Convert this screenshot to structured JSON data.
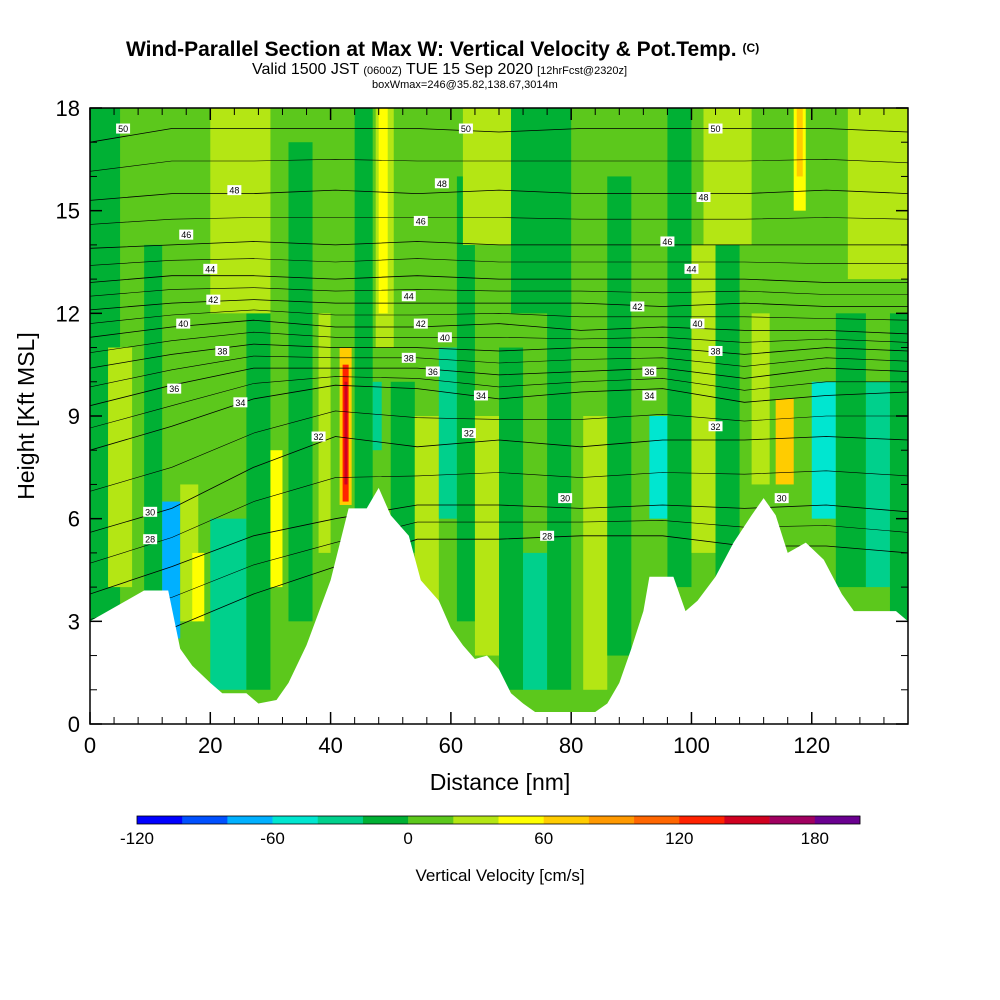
{
  "chart_data": {
    "type": "heatmap",
    "title": "Wind-Parallel Section at Max W: Vertical Velocity & Pot.Temp.",
    "title_mark": "(C)",
    "subtitle_parts": [
      "Valid 1500 JST",
      "(0600Z)",
      "TUE 15 Sep 2020",
      "[12hrFcst@2320z]"
    ],
    "subtitle2": "boxWmax=246@35.82,138.67,3014m",
    "xlabel": "Distance [nm]",
    "ylabel": "Height [Kft MSL]",
    "xlim": [
      0,
      136
    ],
    "ylim": [
      0,
      18
    ],
    "x_ticks": [
      0,
      20,
      40,
      60,
      80,
      100,
      120
    ],
    "y_ticks": [
      0,
      3,
      6,
      9,
      12,
      15,
      18
    ],
    "x_tick_labels": [
      "0",
      "20",
      "40",
      "60",
      "80",
      "100",
      "120"
    ],
    "y_tick_labels": [
      "0",
      "3",
      "6",
      "9",
      "12",
      "15",
      "18"
    ],
    "terrain_kft": [
      [
        0,
        3.0
      ],
      [
        6,
        3.6
      ],
      [
        9,
        3.9
      ],
      [
        13,
        3.9
      ],
      [
        15,
        2.2
      ],
      [
        17,
        1.7
      ],
      [
        20,
        1.2
      ],
      [
        22,
        0.9
      ],
      [
        26,
        0.9
      ],
      [
        28,
        0.6
      ],
      [
        31,
        0.7
      ],
      [
        33,
        1.2
      ],
      [
        36,
        2.3
      ],
      [
        40,
        4.2
      ],
      [
        43,
        6.3
      ],
      [
        46,
        6.3
      ],
      [
        48,
        6.9
      ],
      [
        50,
        6.1
      ],
      [
        53,
        5.5
      ],
      [
        55,
        4.2
      ],
      [
        58,
        3.6
      ],
      [
        60,
        2.8
      ],
      [
        62,
        2.3
      ],
      [
        64,
        1.9
      ],
      [
        66,
        2.0
      ],
      [
        68,
        1.6
      ],
      [
        70,
        0.9
      ],
      [
        72,
        0.6
      ],
      [
        74,
        0.35
      ],
      [
        78,
        0.35
      ],
      [
        84,
        0.35
      ],
      [
        86,
        0.6
      ],
      [
        88,
        1.2
      ],
      [
        90,
        2.2
      ],
      [
        92,
        3.3
      ],
      [
        93,
        4.3
      ],
      [
        97,
        4.3
      ],
      [
        99,
        3.3
      ],
      [
        101,
        3.6
      ],
      [
        104,
        4.3
      ],
      [
        107,
        5.3
      ],
      [
        110,
        6.1
      ],
      [
        112,
        6.6
      ],
      [
        114,
        6.1
      ],
      [
        116,
        5.0
      ],
      [
        119,
        5.3
      ],
      [
        122,
        4.8
      ],
      [
        125,
        3.8
      ],
      [
        127,
        3.3
      ],
      [
        130,
        3.3
      ],
      [
        134,
        3.3
      ],
      [
        136,
        3.0
      ]
    ],
    "theta_contours": [
      {
        "label": "28",
        "y": [
          2.3,
          2.8,
          3.8,
          4.6,
          5.4,
          5.4,
          5.5,
          5.5,
          5.2,
          5.2,
          5.0
        ]
      },
      {
        "label": "30",
        "y": [
          3.8,
          4.6,
          5.5,
          6.0,
          6.4,
          6.4,
          6.3,
          6.4,
          6.3,
          6.4,
          6.2
        ]
      },
      {
        "label": "32",
        "y": [
          5.6,
          6.3,
          7.5,
          8.4,
          8.1,
          8.3,
          8.1,
          8.3,
          8.3,
          8.4,
          8.3
        ]
      },
      {
        "label": "34",
        "y": [
          8.0,
          8.7,
          9.5,
          9.9,
          9.8,
          9.5,
          9.7,
          9.8,
          9.4,
          9.6,
          9.7
        ]
      },
      {
        "label": "36",
        "y": [
          9.3,
          9.9,
          10.4,
          10.4,
          10.4,
          10.2,
          10.3,
          10.4,
          10.1,
          10.4,
          10.3
        ]
      },
      {
        "label": "38",
        "y": [
          10.4,
          10.8,
          11.1,
          11.0,
          11.0,
          10.9,
          11.0,
          11.0,
          10.8,
          11.0,
          10.9
        ]
      },
      {
        "label": "40",
        "y": [
          11.3,
          11.6,
          11.8,
          11.6,
          11.6,
          11.7,
          11.5,
          11.6,
          11.5,
          11.5,
          11.4
        ]
      },
      {
        "label": "42",
        "y": [
          12.1,
          12.3,
          12.4,
          12.3,
          12.3,
          12.3,
          12.3,
          12.2,
          12.3,
          12.2,
          12.2
        ]
      },
      {
        "label": "44",
        "y": [
          12.9,
          13.1,
          13.1,
          13.0,
          13.1,
          13.0,
          13.0,
          13.0,
          13.0,
          12.9,
          12.9
        ]
      },
      {
        "label": "46",
        "y": [
          13.9,
          14.0,
          14.1,
          14.0,
          14.1,
          14.0,
          14.0,
          14.0,
          14.0,
          14.0,
          14.0
        ]
      },
      {
        "label": "48",
        "y": [
          15.3,
          15.5,
          15.5,
          15.6,
          15.5,
          15.6,
          15.5,
          15.5,
          15.5,
          15.6,
          15.5
        ]
      },
      {
        "label": "50",
        "y": [
          17.0,
          17.4,
          17.4,
          17.4,
          17.4,
          17.3,
          17.4,
          17.4,
          17.4,
          17.4,
          17.3
        ]
      }
    ],
    "contour_x": [
      0,
      13.6,
      27.2,
      40.8,
      54.4,
      68,
      81.6,
      95.2,
      108.8,
      122.4,
      136
    ],
    "contour_labels": [
      {
        "text": "50",
        "x": 5.5,
        "y": 17.4
      },
      {
        "text": "50",
        "x": 62.5,
        "y": 17.4
      },
      {
        "text": "50",
        "x": 104,
        "y": 17.4
      },
      {
        "text": "48",
        "x": 24,
        "y": 15.6
      },
      {
        "text": "48",
        "x": 58.5,
        "y": 15.8
      },
      {
        "text": "48",
        "x": 102,
        "y": 15.4
      },
      {
        "text": "46",
        "x": 16,
        "y": 14.3
      },
      {
        "text": "46",
        "x": 55,
        "y": 14.7
      },
      {
        "text": "46",
        "x": 96,
        "y": 14.1
      },
      {
        "text": "44",
        "x": 20,
        "y": 13.3
      },
      {
        "text": "44",
        "x": 53,
        "y": 12.5
      },
      {
        "text": "44",
        "x": 100,
        "y": 13.3
      },
      {
        "text": "42",
        "x": 20.5,
        "y": 12.4
      },
      {
        "text": "42",
        "x": 55,
        "y": 11.7
      },
      {
        "text": "42",
        "x": 91,
        "y": 12.2
      },
      {
        "text": "40",
        "x": 15.5,
        "y": 11.7
      },
      {
        "text": "40",
        "x": 59,
        "y": 11.3
      },
      {
        "text": "40",
        "x": 101,
        "y": 11.7
      },
      {
        "text": "38",
        "x": 22,
        "y": 10.9
      },
      {
        "text": "38",
        "x": 53,
        "y": 10.7
      },
      {
        "text": "38",
        "x": 104,
        "y": 10.9
      },
      {
        "text": "36",
        "x": 14,
        "y": 9.8
      },
      {
        "text": "36",
        "x": 57,
        "y": 10.3
      },
      {
        "text": "36",
        "x": 93,
        "y": 10.3
      },
      {
        "text": "34",
        "x": 25,
        "y": 9.4
      },
      {
        "text": "34",
        "x": 65,
        "y": 9.6
      },
      {
        "text": "34",
        "x": 93,
        "y": 9.6
      },
      {
        "text": "32",
        "x": 38,
        "y": 8.4
      },
      {
        "text": "32",
        "x": 63,
        "y": 8.5
      },
      {
        "text": "32",
        "x": 104,
        "y": 8.7
      },
      {
        "text": "30",
        "x": 10,
        "y": 6.2
      },
      {
        "text": "30",
        "x": 79,
        "y": 6.6
      },
      {
        "text": "30",
        "x": 115,
        "y": 6.6
      },
      {
        "text": "28",
        "x": 10,
        "y": 5.4
      },
      {
        "text": "28",
        "x": 76,
        "y": 5.5
      }
    ],
    "colorbar": {
      "label": "Vertical Velocity [cm/s]",
      "ticks": [
        "-120",
        "-60",
        "0",
        "60",
        "120",
        "180"
      ],
      "colors": [
        "#0000ff",
        "#0050ff",
        "#00b0ff",
        "#00e6d0",
        "#00d08c",
        "#00b034",
        "#5cc81c",
        "#b4e614",
        "#ffff00",
        "#ffcc00",
        "#ff9900",
        "#ff6600",
        "#ff2200",
        "#d00020",
        "#a00060",
        "#6a0090"
      ]
    }
  }
}
